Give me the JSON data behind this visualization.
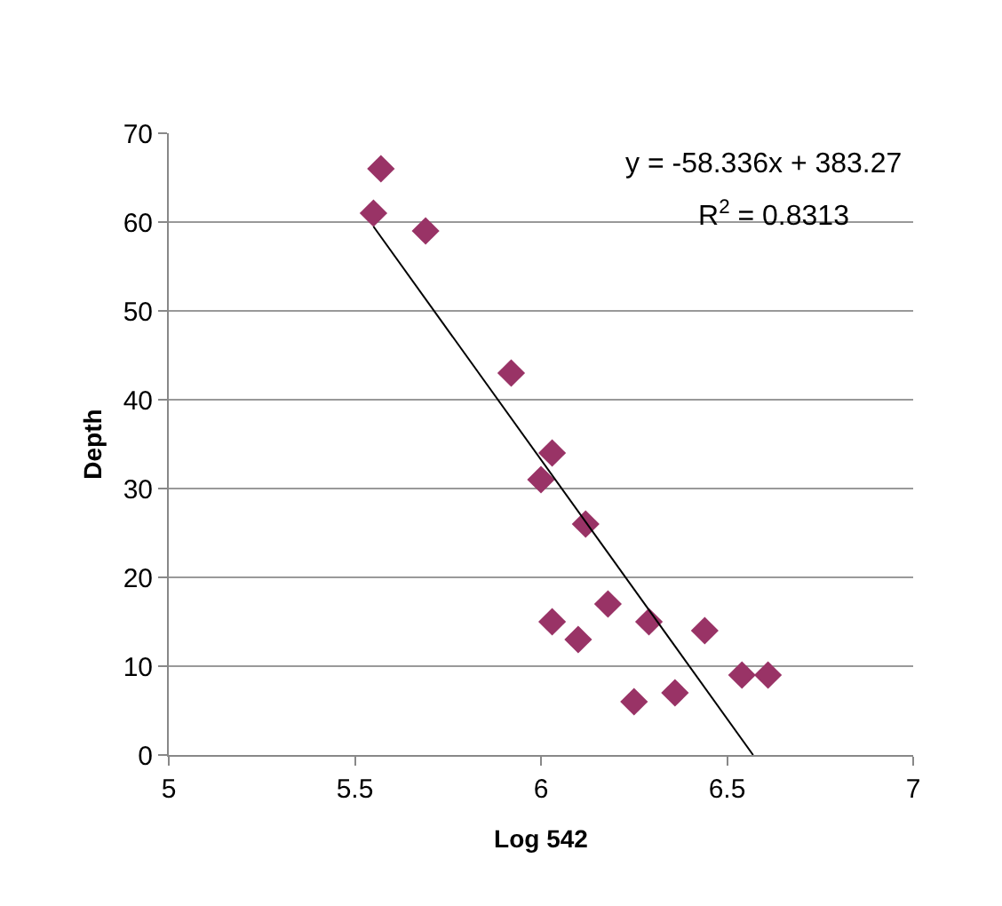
{
  "chart_data": {
    "type": "scatter",
    "xlabel": "Log 542",
    "ylabel": "Depth",
    "x": [
      5.55,
      5.57,
      5.69,
      5.92,
      6.03,
      6.0,
      6.12,
      6.18,
      6.03,
      6.1,
      6.29,
      6.25,
      6.36,
      6.44,
      6.54,
      6.61
    ],
    "series": [
      {
        "color": "#993366",
        "values": [
          61,
          66,
          59,
          43,
          34,
          31,
          26,
          17,
          15,
          13,
          15,
          6,
          7,
          14,
          9,
          9
        ]
      },
      {
        "type": "line",
        "color": "#000000",
        "x": [
          5.55,
          6.57
        ],
        "values": [
          59.5,
          0
        ],
        "marker": "none"
      }
    ],
    "marker": "diamond",
    "grid": "y",
    "xlim": [
      5,
      7
    ],
    "xticks": [
      5,
      5.5,
      6,
      6.5,
      7
    ],
    "ylim": [
      0,
      70
    ],
    "yticks": [
      0,
      10,
      20,
      30,
      40,
      50,
      60,
      70
    ],
    "annotations": [
      "y = -58.336x + 383.27",
      "R$^{2}$ = 0.8313"
    ]
  }
}
